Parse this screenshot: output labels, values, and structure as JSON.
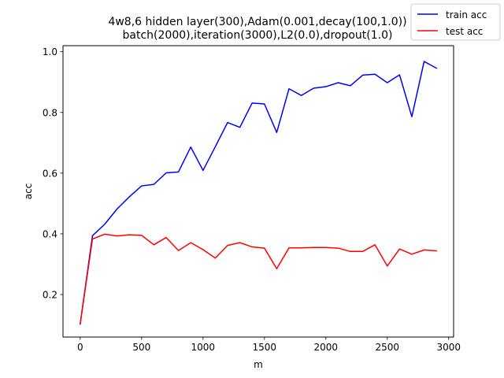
{
  "chart_data": {
    "type": "line",
    "title": "4w8,6 hidden layer(300),Adam(0.001,decay(100,1.0))",
    "subtitle": "batch(2000),iteration(3000),L2(0.0),dropout(1.0)",
    "xlabel": "m",
    "ylabel": "acc",
    "xlim": [
      -140,
      3040
    ],
    "ylim": [
      0.06,
      1.02
    ],
    "xticks": [
      0,
      500,
      1000,
      1500,
      2000,
      2500,
      3000
    ],
    "yticks": [
      0.2,
      0.4,
      0.6,
      0.8,
      1.0
    ],
    "xtick_labels": [
      "0",
      "500",
      "1000",
      "1500",
      "2000",
      "2500",
      "3000"
    ],
    "ytick_labels": [
      "0.2",
      "0.4",
      "0.6",
      "0.8",
      "1.0"
    ],
    "grid": false,
    "legend_position": "top-right",
    "x": [
      0,
      100,
      200,
      300,
      400,
      500,
      600,
      700,
      800,
      900,
      1000,
      1100,
      1200,
      1300,
      1400,
      1500,
      1600,
      1700,
      1800,
      1900,
      2000,
      2100,
      2200,
      2300,
      2400,
      2500,
      2600,
      2700,
      2800,
      2900
    ],
    "series": [
      {
        "name": "train acc",
        "color": "#0000ff",
        "values": [
          0.103,
          0.394,
          0.432,
          0.482,
          0.522,
          0.558,
          0.563,
          0.601,
          0.604,
          0.686,
          0.609,
          0.687,
          0.767,
          0.751,
          0.831,
          0.828,
          0.734,
          0.878,
          0.856,
          0.88,
          0.885,
          0.898,
          0.888,
          0.923,
          0.926,
          0.898,
          0.924,
          0.786,
          0.968,
          0.946
        ]
      },
      {
        "name": "test acc",
        "color": "#ff0000",
        "values": [
          0.103,
          0.383,
          0.399,
          0.393,
          0.397,
          0.395,
          0.364,
          0.388,
          0.345,
          0.371,
          0.348,
          0.32,
          0.362,
          0.371,
          0.357,
          0.353,
          0.285,
          0.354,
          0.354,
          0.355,
          0.355,
          0.353,
          0.342,
          0.342,
          0.364,
          0.294,
          0.35,
          0.333,
          0.347,
          0.344
        ]
      }
    ]
  }
}
